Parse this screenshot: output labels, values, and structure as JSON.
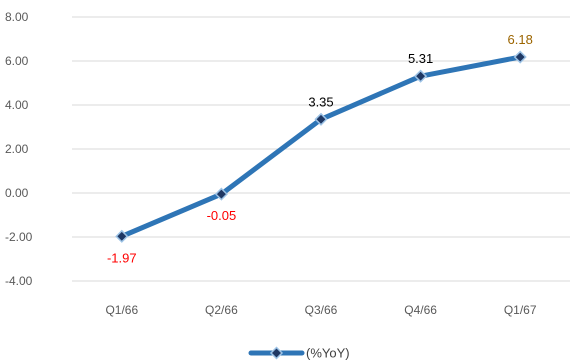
{
  "chart_data": {
    "type": "line",
    "categories": [
      "Q1/66",
      "Q2/66",
      "Q3/66",
      "Q4/66",
      "Q1/67"
    ],
    "series": [
      {
        "name": "(%YoY)",
        "values": [
          -1.97,
          -0.05,
          3.35,
          5.31,
          6.18
        ]
      }
    ],
    "data_labels": [
      "-1.97",
      "-0.05",
      "3.35",
      "5.31",
      "6.18"
    ],
    "yticks": [
      "8.00",
      "6.00",
      "4.00",
      "2.00",
      "0.00",
      "-2.00",
      "-4.00"
    ],
    "ylim": [
      -4,
      8
    ],
    "grid": true,
    "legend": "bottom",
    "colors": {
      "line": "#2E75B6",
      "marker": "#1F3864",
      "grid": "#D9D9D9",
      "negative_label": "#FF0000",
      "positive_label": "#000000",
      "latest_label": "#9C6500"
    }
  }
}
